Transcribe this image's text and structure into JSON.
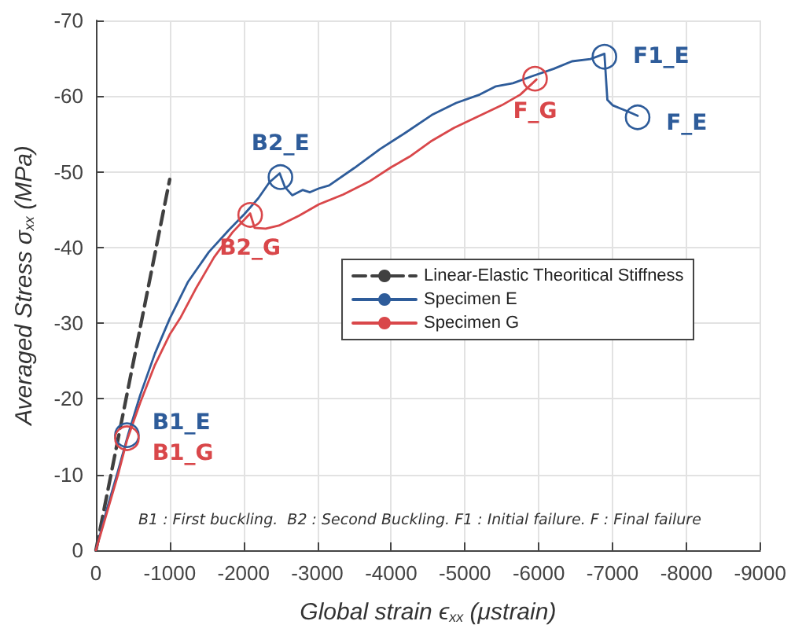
{
  "chart_data": {
    "type": "line",
    "xlabel": "Global strain ϵ$_{xx}$ (μstrain)",
    "ylabel": "Averaged Stress σ$_{xx}$ (MPa)",
    "xlim": [
      0,
      -9000
    ],
    "xticks": [
      0,
      -1000,
      -2000,
      -3000,
      -4000,
      -5000,
      -6000,
      -7000,
      -8000,
      -9000
    ],
    "ylim": [
      0,
      -70
    ],
    "yticks": [
      0,
      -10,
      -20,
      -30,
      -40,
      -50,
      -60,
      -70
    ],
    "grid": true,
    "legend": "right",
    "marker": "none",
    "series": [
      {
        "name": "Linear-Elastic Theoritical Stiffness",
        "color": "#404040",
        "line_style": "dashed",
        "x": [
          0,
          -1000
        ],
        "values": [
          0,
          -49
        ]
      },
      {
        "name": "Specimen E",
        "color": "#2e5c9a",
        "line_style": "solid",
        "x": [
          0,
          -150,
          -300,
          -440,
          -600,
          -800,
          -1000,
          -1250,
          -1530,
          -1800,
          -2010,
          -2200,
          -2350,
          -2490,
          -2560,
          -2660,
          -2800,
          -2900,
          -3020,
          -3160,
          -3500,
          -3850,
          -4200,
          -4550,
          -4880,
          -5200,
          -5420,
          -5650,
          -5900,
          -6200,
          -6450,
          -6700,
          -6890,
          -6930,
          -7000,
          -7100,
          -7200,
          -7340
        ],
        "values": [
          0,
          -5.5,
          -10.5,
          -15.4,
          -20.5,
          -26,
          -30.6,
          -35.5,
          -39.4,
          -42.3,
          -44.4,
          -46.5,
          -48.6,
          -49.8,
          -48.0,
          -46.9,
          -47.6,
          -47.3,
          -47.8,
          -48.2,
          -50.5,
          -53.0,
          -55.2,
          -57.5,
          -59.1,
          -60.2,
          -61.3,
          -61.7,
          -62.6,
          -63.6,
          -64.6,
          -64.9,
          -65.6,
          -59.5,
          -58.8,
          -58.4,
          -58.0,
          -57.4
        ]
      },
      {
        "name": "Specimen G",
        "color": "#d9474a",
        "line_style": "solid",
        "x": [
          0,
          -150,
          -300,
          -420,
          -600,
          -800,
          -1000,
          -1150,
          -1350,
          -1600,
          -1850,
          -2090,
          -2150,
          -2300,
          -2480,
          -2750,
          -3020,
          -3350,
          -3700,
          -4000,
          -4250,
          -4535,
          -4850,
          -5220,
          -5500,
          -5750,
          -5970
        ],
        "values": [
          0,
          -5,
          -10,
          -14.5,
          -19.5,
          -24.5,
          -28.5,
          -30.8,
          -34.5,
          -38.7,
          -42.0,
          -44.5,
          -42.6,
          -42.5,
          -42.9,
          -44.2,
          -45.7,
          -47.0,
          -48.7,
          -50.6,
          -52.0,
          -54.0,
          -55.8,
          -57.5,
          -58.8,
          -60.2,
          -62.2
        ]
      }
    ],
    "annotations": [
      {
        "text": "B1_E",
        "x": -420,
        "y": -15.2
      },
      {
        "text": "B1_G",
        "x": -420,
        "y": -14.8
      },
      {
        "text": "B2_E",
        "x": -2500,
        "y": -49.3
      },
      {
        "text": "B2_G",
        "x": -2090,
        "y": -44.3
      },
      {
        "text": "F1_E",
        "x": -6890,
        "y": -65.2
      },
      {
        "text": "F_E",
        "x": -7340,
        "y": -57.2
      },
      {
        "text": "F_G",
        "x": -5950,
        "y": -62.3
      },
      "B1 : First buckling.  B2 : Second Buckling. F1 : Initial failure. F : Final failure"
    ]
  }
}
